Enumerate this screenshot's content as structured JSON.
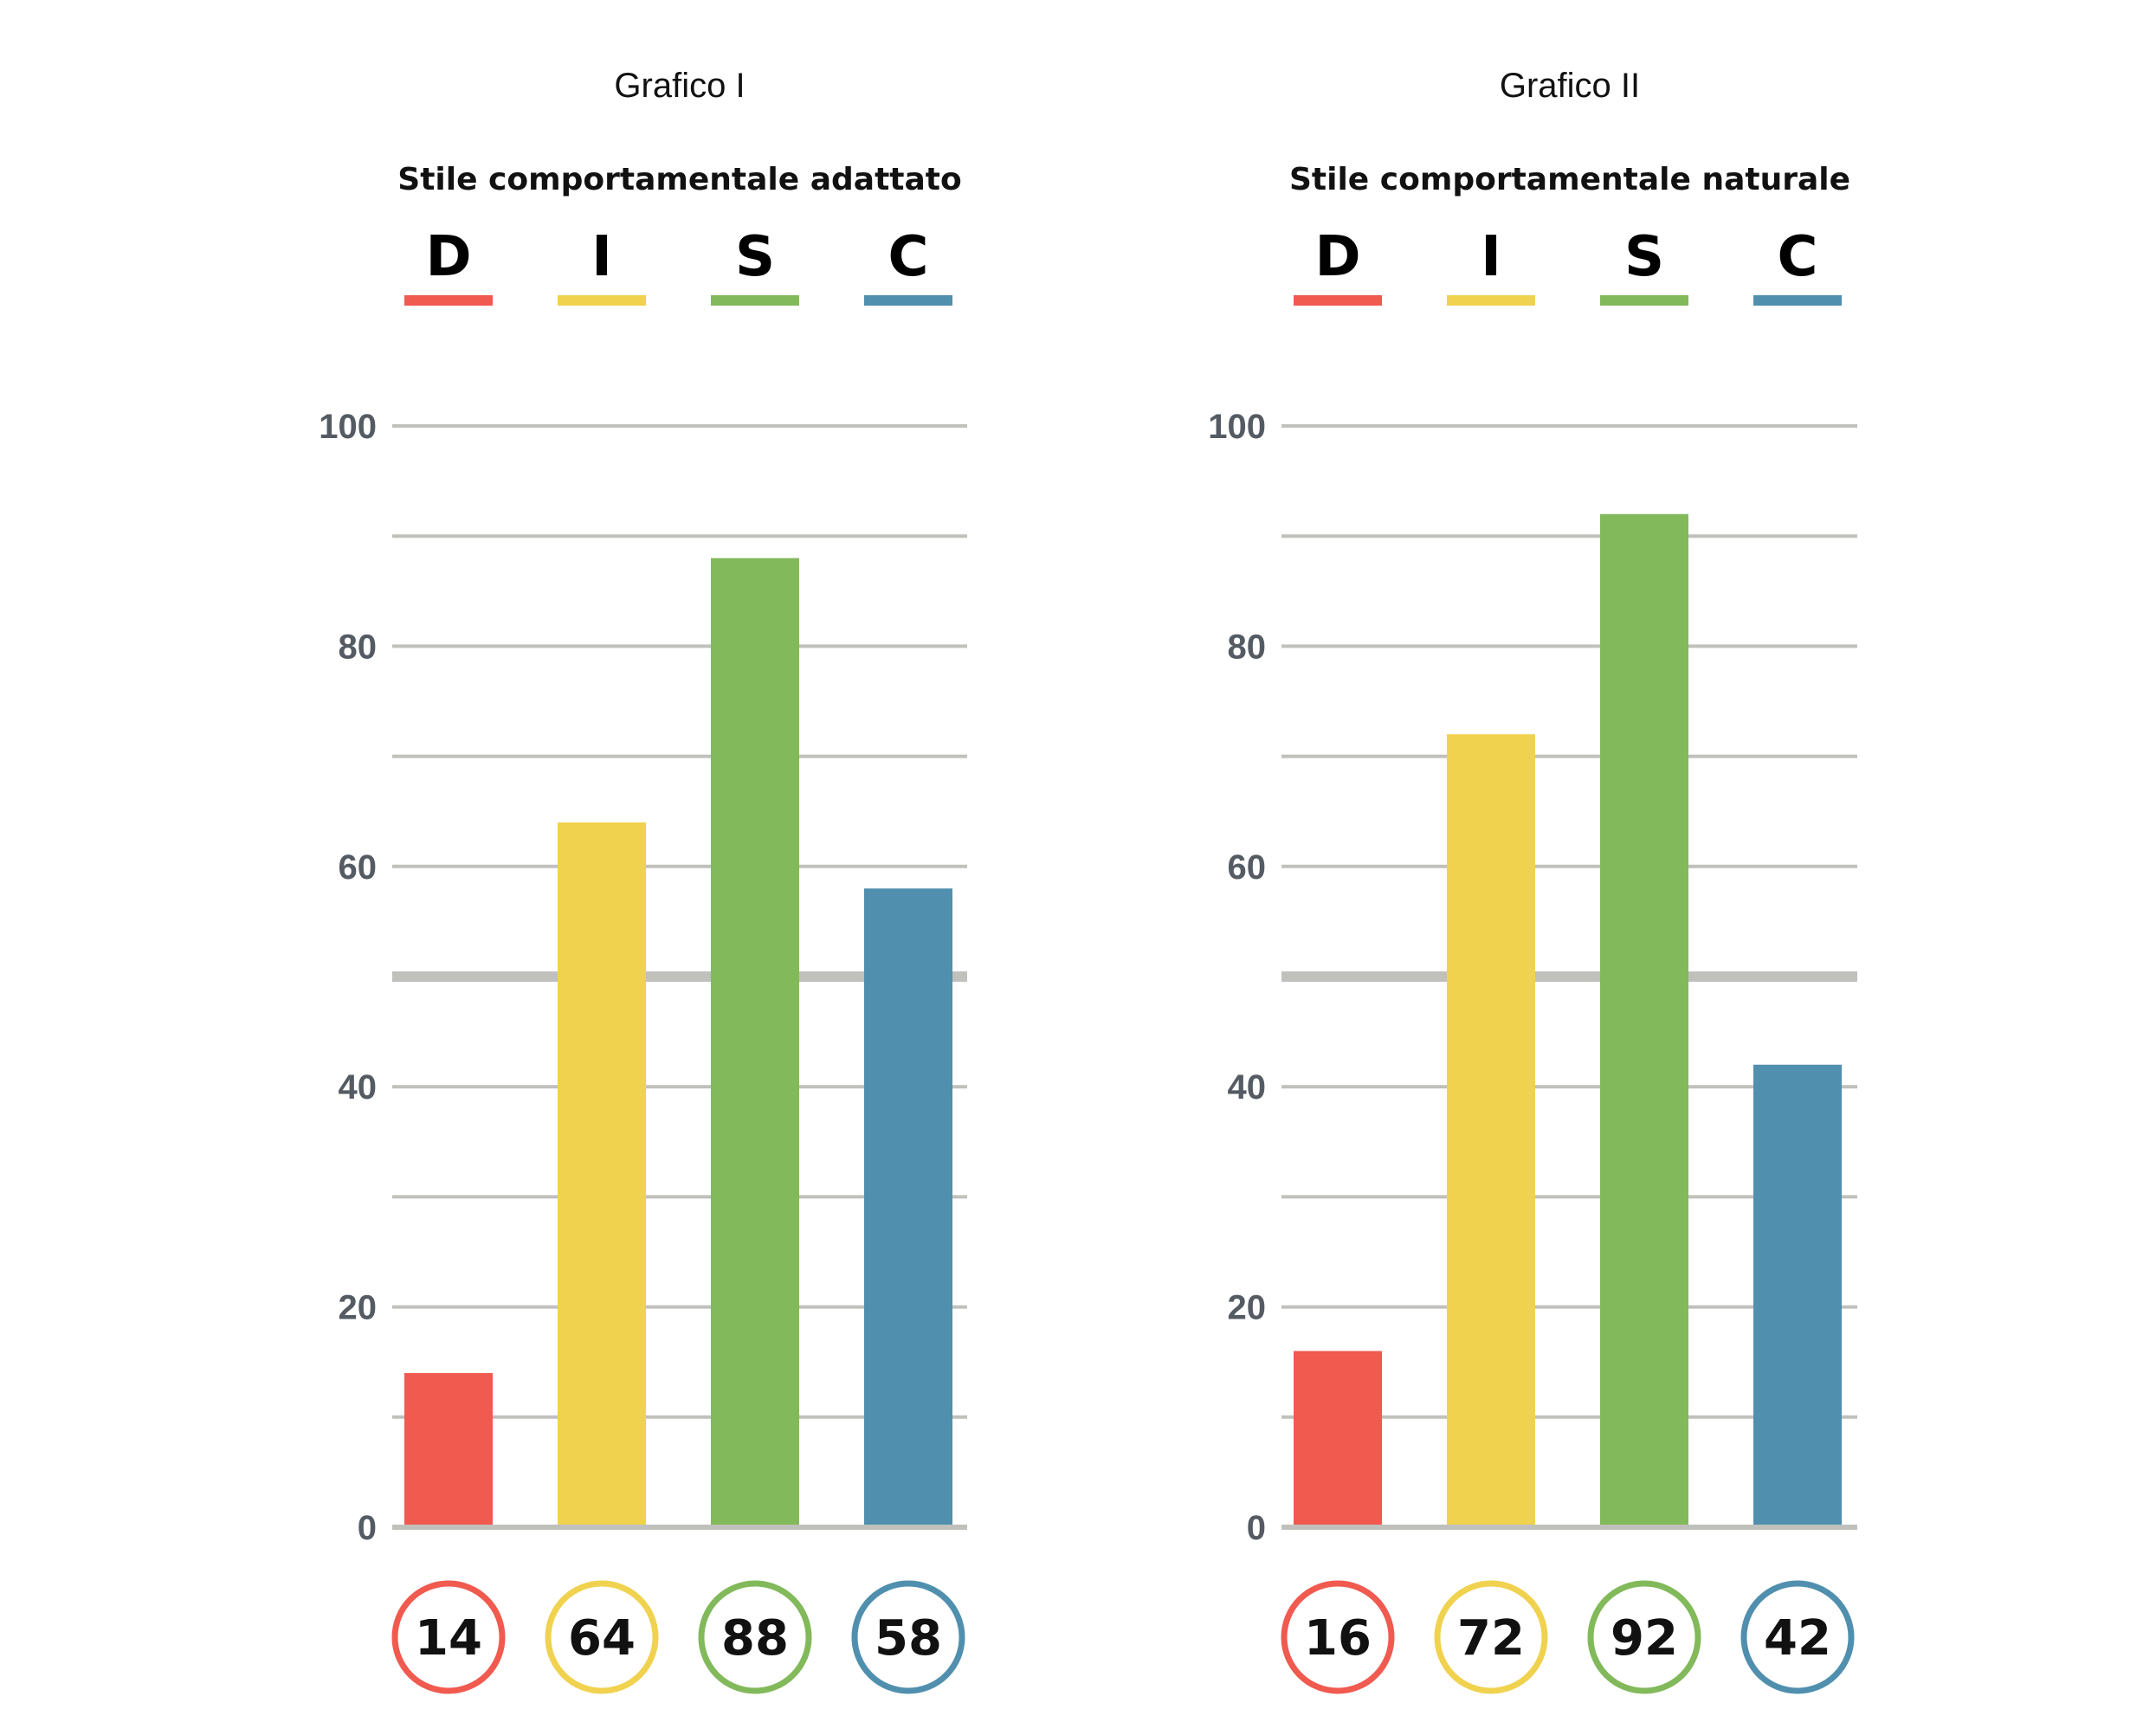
{
  "colors": {
    "D": "#f05a4f",
    "I": "#f0d24f",
    "S": "#82b95b",
    "C": "#508fae",
    "grid": "#c0c0bc",
    "tick": "#555b63"
  },
  "chart_data": [
    {
      "type": "bar",
      "title": "Grafico I",
      "subtitle": "Stile comportamentale adattato",
      "categories": [
        "D",
        "I",
        "S",
        "C"
      ],
      "values": [
        14,
        64,
        88,
        58
      ],
      "value_labels": [
        "14",
        "64",
        "88",
        "58"
      ],
      "ylim": [
        0,
        100
      ],
      "yticks": [
        0,
        20,
        40,
        60,
        80,
        100
      ],
      "ytick_labels": [
        "0",
        "20",
        "40",
        "60",
        "80",
        "100"
      ],
      "gridlines": [
        0,
        10,
        20,
        30,
        40,
        50,
        60,
        70,
        80,
        90,
        100
      ],
      "midline": 50,
      "grid": true
    },
    {
      "type": "bar",
      "title": "Grafico II",
      "subtitle": "Stile comportamentale naturale",
      "categories": [
        "D",
        "I",
        "S",
        "C"
      ],
      "values": [
        16,
        72,
        92,
        42
      ],
      "value_labels": [
        "16",
        "72",
        "92",
        "42"
      ],
      "ylim": [
        0,
        100
      ],
      "yticks": [
        0,
        20,
        40,
        60,
        80,
        100
      ],
      "ytick_labels": [
        "0",
        "20",
        "40",
        "60",
        "80",
        "100"
      ],
      "gridlines": [
        0,
        10,
        20,
        30,
        40,
        50,
        60,
        70,
        80,
        90,
        100
      ],
      "midline": 50,
      "grid": true
    }
  ]
}
